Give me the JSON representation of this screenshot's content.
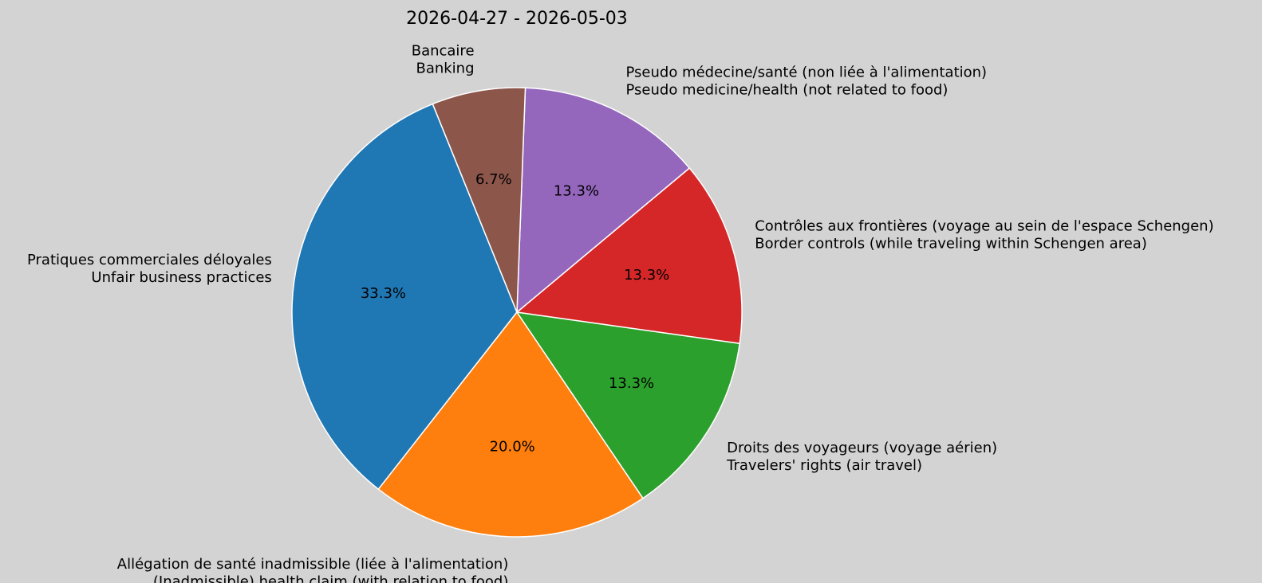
{
  "chart_data": {
    "type": "pie",
    "title": "2026-04-27 - 2026-05-03",
    "slices": [
      {
        "label_fr": "Pratiques commerciales déloyales",
        "label_en": "Unfair business practices",
        "value": 33.3,
        "pct_label": "33.3%",
        "color": "#1f77b4"
      },
      {
        "label_fr": "Allégation de santé inadmissible (liée à l'alimentation)",
        "label_en": "(Inadmissible) health claim (with relation to food)",
        "value": 20.0,
        "pct_label": "20.0%",
        "color": "#ff7f0e"
      },
      {
        "label_fr": "Droits des voyageurs (voyage aérien)",
        "label_en": "Travelers' rights (air travel)",
        "value": 13.3,
        "pct_label": "13.3%",
        "color": "#2ca02c"
      },
      {
        "label_fr": "Contrôles aux frontières (voyage au sein de l'espace Schengen)",
        "label_en": "Border controls (while traveling within Schengen area)",
        "value": 13.3,
        "pct_label": "13.3%",
        "color": "#d62728"
      },
      {
        "label_fr": "Pseudo médecine/santé (non liée à l'alimentation)",
        "label_en": "Pseudo medicine/health (not related to food)",
        "value": 13.3,
        "pct_label": "13.3%",
        "color": "#9467bd"
      },
      {
        "label_fr": "Bancaire",
        "label_en": "Banking",
        "value": 6.7,
        "pct_label": "6.7%",
        "color": "#8c564b"
      }
    ],
    "background": "#d3d3d3"
  }
}
